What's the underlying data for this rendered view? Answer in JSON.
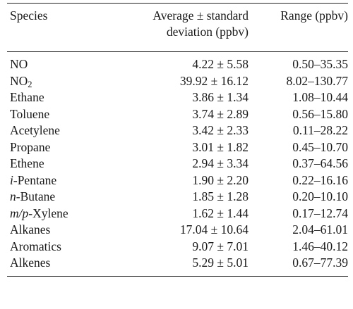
{
  "table": {
    "headers": {
      "species": "Species",
      "avg_line1": "Average ± standard",
      "avg_line2": "deviation (ppbv)",
      "range": "Range (ppbv)"
    },
    "rows": [
      {
        "prefix": "",
        "name": "NO",
        "sub": "",
        "avg": "4.22 ± 5.58",
        "range": "0.50–35.35"
      },
      {
        "prefix": "",
        "name": "NO",
        "sub": "2",
        "avg": "39.92 ± 16.12",
        "range": "8.02–130.77"
      },
      {
        "prefix": "",
        "name": "Ethane",
        "sub": "",
        "avg": "3.86 ± 1.34",
        "range": "1.08–10.44"
      },
      {
        "prefix": "",
        "name": "Toluene",
        "sub": "",
        "avg": "3.74 ± 2.89",
        "range": "0.56–15.80"
      },
      {
        "prefix": "",
        "name": "Acetylene",
        "sub": "",
        "avg": "3.42 ± 2.33",
        "range": "0.11–28.22"
      },
      {
        "prefix": "",
        "name": "Propane",
        "sub": "",
        "avg": "3.01 ± 1.82",
        "range": "0.45–10.70"
      },
      {
        "prefix": "",
        "name": "Ethene",
        "sub": "",
        "avg": "2.94 ± 3.34",
        "range": "0.37–64.56"
      },
      {
        "prefix": "i",
        "name": "-Pentane",
        "sub": "",
        "avg": "1.90 ± 2.20",
        "range": "0.22–16.16"
      },
      {
        "prefix": "n",
        "name": "-Butane",
        "sub": "",
        "avg": "1.85 ± 1.28",
        "range": "0.20–10.10"
      },
      {
        "prefix": "m/p",
        "name": "-Xylene",
        "sub": "",
        "avg": "1.62 ± 1.44",
        "range": "0.17–12.74"
      },
      {
        "prefix": "",
        "name": "Alkanes",
        "sub": "",
        "avg": "17.04 ± 10.64",
        "range": "2.04–61.01"
      },
      {
        "prefix": "",
        "name": "Aromatics",
        "sub": "",
        "avg": "9.07 ± 7.01",
        "range": "1.46–40.12"
      },
      {
        "prefix": "",
        "name": "Alkenes",
        "sub": "",
        "avg": "5.29 ± 5.01",
        "range": "0.67–77.39"
      }
    ]
  }
}
